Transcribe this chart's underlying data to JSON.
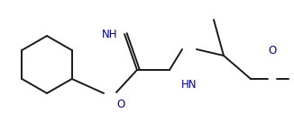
{
  "bg_color": "#ffffff",
  "line_color": "#1a1a1a",
  "heteroatom_color": "#00008b",
  "label_NH_1": "NH",
  "label_NH_2": "HN",
  "label_O_carbonyl": "O",
  "label_O_methoxy": "O",
  "fig_width": 3.26,
  "fig_height": 1.45,
  "dpi": 100,
  "lw": 1.4
}
